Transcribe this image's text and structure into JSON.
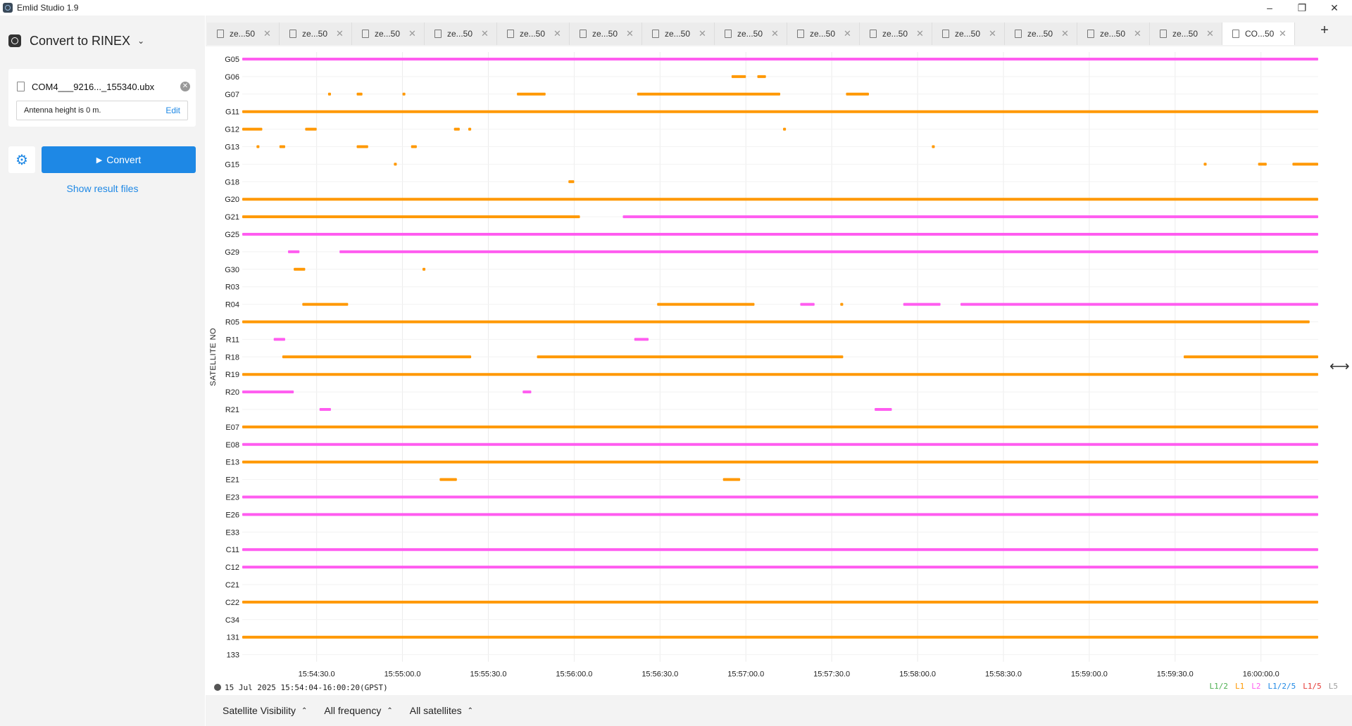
{
  "window": {
    "title": "Emlid Studio 1.9",
    "controls": [
      "–",
      "❐",
      "✕"
    ]
  },
  "sidebar": {
    "mode_title": "Convert to RINEX",
    "file_name": "COM4___9216..._155340.ubx",
    "antenna_text": "Antenna height is 0 m.",
    "edit_label": "Edit",
    "convert_label": "Convert",
    "show_results_label": "Show result files"
  },
  "tabs": [
    {
      "label": "ze...50",
      "active": false
    },
    {
      "label": "ze...50",
      "active": false
    },
    {
      "label": "ze...50",
      "active": false
    },
    {
      "label": "ze...50",
      "active": false
    },
    {
      "label": "ze...50",
      "active": false
    },
    {
      "label": "ze...50",
      "active": false
    },
    {
      "label": "ze...50",
      "active": false
    },
    {
      "label": "ze...50",
      "active": false
    },
    {
      "label": "ze...50",
      "active": false
    },
    {
      "label": "ze...50",
      "active": false
    },
    {
      "label": "ze...50",
      "active": false
    },
    {
      "label": "ze...50",
      "active": false
    },
    {
      "label": "ze...50",
      "active": false
    },
    {
      "label": "ze...50",
      "active": false
    },
    {
      "label": "CO...50",
      "active": true
    }
  ],
  "new_tab_label": "+",
  "status": {
    "time_range": "15 Jul 2025 15:54:04-16:00:20(GPST)"
  },
  "legend": [
    {
      "label": "L1/2",
      "color": "#4caf50"
    },
    {
      "label": "L1",
      "color": "#ff9800"
    },
    {
      "label": "L2",
      "color": "#ff5cf0"
    },
    {
      "label": "L1/2/5",
      "color": "#1e88e5"
    },
    {
      "label": "L1/5",
      "color": "#e53935"
    },
    {
      "label": "L5",
      "color": "#9e9e9e"
    }
  ],
  "bottom": {
    "visibility_label": "Satellite Visibility",
    "frequency_label": "All frequency",
    "satellites_label": "All satellites"
  },
  "chart_data": {
    "type": "timeline",
    "ylabel": "SATELLITE NO",
    "satellites": [
      "G05",
      "G06",
      "G07",
      "G11",
      "G12",
      "G13",
      "G15",
      "G18",
      "G20",
      "G21",
      "G25",
      "G29",
      "G30",
      "R03",
      "R04",
      "R05",
      "R11",
      "R18",
      "R19",
      "R20",
      "R21",
      "E07",
      "E08",
      "E13",
      "E21",
      "E23",
      "E26",
      "E33",
      "C11",
      "C12",
      "C21",
      "C22",
      "C34",
      "131",
      "133"
    ],
    "x_ticks": [
      "15:54:30.0",
      "15:55:00.0",
      "15:55:30.0",
      "15:56:00.0",
      "15:56:30.0",
      "15:57:00.0",
      "15:57:30.0",
      "15:58:00.0",
      "15:58:30.0",
      "15:59:00.0",
      "15:59:30.0",
      "16:00:00.0"
    ],
    "x_range": [
      "15:54:04",
      "16:00:20"
    ],
    "series": [
      {
        "sat": "G05",
        "segments": [
          {
            "start": "15:54:04",
            "end": "16:00:20",
            "color": "#ff5cf0"
          }
        ]
      },
      {
        "sat": "G06",
        "segments": [
          {
            "start": "15:56:55",
            "end": "15:57:00",
            "color": "#ff9800"
          },
          {
            "start": "15:57:04",
            "end": "15:57:07",
            "color": "#ff9800"
          }
        ]
      },
      {
        "sat": "G07",
        "segments": [
          {
            "start": "15:54:34",
            "end": "15:54:35",
            "color": "#ff9800"
          },
          {
            "start": "15:54:44",
            "end": "15:54:46",
            "color": "#ff9800"
          },
          {
            "start": "15:55:00",
            "end": "15:55:01",
            "color": "#ff9800"
          },
          {
            "start": "15:55:40",
            "end": "15:55:50",
            "color": "#ff9800"
          },
          {
            "start": "15:56:22",
            "end": "15:57:12",
            "color": "#ff9800"
          },
          {
            "start": "15:57:35",
            "end": "15:57:43",
            "color": "#ff9800"
          }
        ]
      },
      {
        "sat": "G11",
        "segments": [
          {
            "start": "15:54:04",
            "end": "16:00:20",
            "color": "#ff9800"
          }
        ]
      },
      {
        "sat": "G12",
        "segments": [
          {
            "start": "15:54:04",
            "end": "15:54:11",
            "color": "#ff9800"
          },
          {
            "start": "15:54:26",
            "end": "15:54:30",
            "color": "#ff9800"
          },
          {
            "start": "15:55:18",
            "end": "15:55:20",
            "color": "#ff9800"
          },
          {
            "start": "15:55:23",
            "end": "15:55:24",
            "color": "#ff9800"
          },
          {
            "start": "15:57:13",
            "end": "15:57:14",
            "color": "#ff9800"
          }
        ]
      },
      {
        "sat": "G13",
        "segments": [
          {
            "start": "15:54:09",
            "end": "15:54:10",
            "color": "#ff9800"
          },
          {
            "start": "15:54:17",
            "end": "15:54:19",
            "color": "#ff9800"
          },
          {
            "start": "15:54:44",
            "end": "15:54:48",
            "color": "#ff9800"
          },
          {
            "start": "15:55:03",
            "end": "15:55:05",
            "color": "#ff9800"
          },
          {
            "start": "15:58:05",
            "end": "15:58:06",
            "color": "#ff9800"
          }
        ]
      },
      {
        "sat": "G15",
        "segments": [
          {
            "start": "15:54:57",
            "end": "15:54:58",
            "color": "#ff9800"
          },
          {
            "start": "15:59:40",
            "end": "15:59:41",
            "color": "#ff9800"
          },
          {
            "start": "15:59:59",
            "end": "16:00:02",
            "color": "#ff9800"
          },
          {
            "start": "16:00:11",
            "end": "16:00:20",
            "color": "#ff9800"
          }
        ]
      },
      {
        "sat": "G18",
        "segments": [
          {
            "start": "15:55:58",
            "end": "15:56:00",
            "color": "#ff9800"
          }
        ]
      },
      {
        "sat": "G20",
        "segments": [
          {
            "start": "15:54:04",
            "end": "16:00:20",
            "color": "#ff9800"
          }
        ]
      },
      {
        "sat": "G21",
        "segments": [
          {
            "start": "15:54:04",
            "end": "15:56:02",
            "color": "#ff9800"
          },
          {
            "start": "15:56:17",
            "end": "16:00:20",
            "color": "#ff5cf0"
          }
        ]
      },
      {
        "sat": "G25",
        "segments": [
          {
            "start": "15:54:04",
            "end": "16:00:20",
            "color": "#ff5cf0"
          }
        ]
      },
      {
        "sat": "G29",
        "segments": [
          {
            "start": "15:54:20",
            "end": "15:54:24",
            "color": "#ff5cf0"
          },
          {
            "start": "15:54:38",
            "end": "16:00:20",
            "color": "#ff5cf0"
          }
        ]
      },
      {
        "sat": "G30",
        "segments": [
          {
            "start": "15:54:22",
            "end": "15:54:26",
            "color": "#ff9800"
          },
          {
            "start": "15:55:07",
            "end": "15:55:08",
            "color": "#ff9800"
          }
        ]
      },
      {
        "sat": "R04",
        "segments": [
          {
            "start": "15:54:25",
            "end": "15:54:41",
            "color": "#ff9800"
          },
          {
            "start": "15:56:29",
            "end": "15:57:03",
            "color": "#ff9800"
          },
          {
            "start": "15:57:19",
            "end": "15:57:24",
            "color": "#ff5cf0"
          },
          {
            "start": "15:57:33",
            "end": "15:57:34",
            "color": "#ff9800"
          },
          {
            "start": "15:57:55",
            "end": "15:58:08",
            "color": "#ff5cf0"
          },
          {
            "start": "15:58:15",
            "end": "16:00:20",
            "color": "#ff5cf0"
          }
        ]
      },
      {
        "sat": "R05",
        "segments": [
          {
            "start": "15:54:04",
            "end": "16:00:17",
            "color": "#ff9800"
          }
        ]
      },
      {
        "sat": "R11",
        "segments": [
          {
            "start": "15:54:15",
            "end": "15:54:19",
            "color": "#ff5cf0"
          },
          {
            "start": "15:56:21",
            "end": "15:56:26",
            "color": "#ff5cf0"
          }
        ]
      },
      {
        "sat": "R18",
        "segments": [
          {
            "start": "15:54:18",
            "end": "15:55:24",
            "color": "#ff9800"
          },
          {
            "start": "15:55:47",
            "end": "15:57:34",
            "color": "#ff9800"
          },
          {
            "start": "15:59:33",
            "end": "16:00:20",
            "color": "#ff9800"
          }
        ]
      },
      {
        "sat": "R19",
        "segments": [
          {
            "start": "15:54:04",
            "end": "16:00:20",
            "color": "#ff9800"
          }
        ]
      },
      {
        "sat": "R20",
        "segments": [
          {
            "start": "15:54:04",
            "end": "15:54:22",
            "color": "#ff5cf0"
          },
          {
            "start": "15:55:42",
            "end": "15:55:45",
            "color": "#ff5cf0"
          }
        ]
      },
      {
        "sat": "R21",
        "segments": [
          {
            "start": "15:54:31",
            "end": "15:54:35",
            "color": "#ff5cf0"
          },
          {
            "start": "15:57:45",
            "end": "15:57:51",
            "color": "#ff5cf0"
          }
        ]
      },
      {
        "sat": "E07",
        "segments": [
          {
            "start": "15:54:04",
            "end": "16:00:20",
            "color": "#ff9800"
          }
        ]
      },
      {
        "sat": "E08",
        "segments": [
          {
            "start": "15:54:04",
            "end": "16:00:20",
            "color": "#ff5cf0"
          }
        ]
      },
      {
        "sat": "E13",
        "segments": [
          {
            "start": "15:54:04",
            "end": "16:00:20",
            "color": "#ff9800"
          }
        ]
      },
      {
        "sat": "E21",
        "segments": [
          {
            "start": "15:55:13",
            "end": "15:55:19",
            "color": "#ff9800"
          },
          {
            "start": "15:56:52",
            "end": "15:56:58",
            "color": "#ff9800"
          }
        ]
      },
      {
        "sat": "E23",
        "segments": [
          {
            "start": "15:54:04",
            "end": "16:00:20",
            "color": "#ff5cf0"
          }
        ]
      },
      {
        "sat": "E26",
        "segments": [
          {
            "start": "15:54:04",
            "end": "16:00:20",
            "color": "#ff5cf0"
          }
        ]
      },
      {
        "sat": "C11",
        "segments": [
          {
            "start": "15:54:04",
            "end": "16:00:20",
            "color": "#ff5cf0"
          }
        ]
      },
      {
        "sat": "C12",
        "segments": [
          {
            "start": "15:54:04",
            "end": "16:00:20",
            "color": "#ff5cf0"
          }
        ]
      },
      {
        "sat": "C22",
        "segments": [
          {
            "start": "15:54:04",
            "end": "16:00:20",
            "color": "#ff9800"
          }
        ]
      },
      {
        "sat": "131",
        "segments": [
          {
            "start": "15:54:04",
            "end": "16:00:20",
            "color": "#ff9800"
          }
        ]
      }
    ]
  }
}
